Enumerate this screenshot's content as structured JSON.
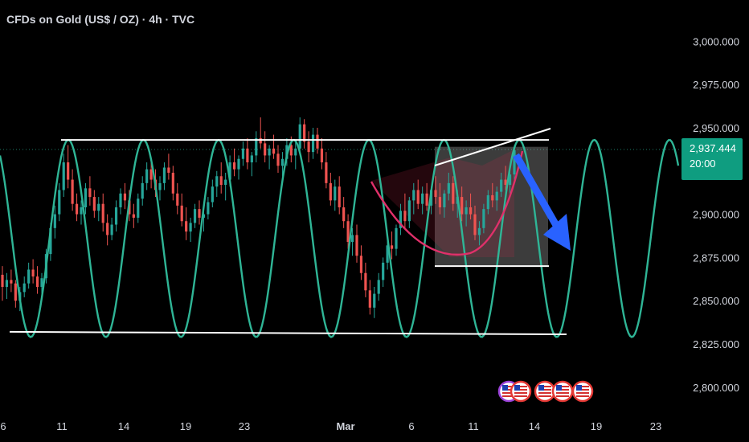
{
  "header": {
    "title": "CFDs on Gold (US$ / OZ) · 4h · TVC"
  },
  "price_tag": {
    "price": "2,937.444",
    "countdown": "20:00",
    "color": "#0f9d80"
  },
  "chart_data": {
    "type": "candlestick",
    "title": "CFDs on Gold (US$ / OZ) · 4h · TVC",
    "y_axis": {
      "ticks": [
        3000,
        2975,
        2950,
        2925,
        2900,
        2875,
        2850,
        2825,
        2800
      ],
      "tick_labels": [
        "3,000.000",
        "2,975.000",
        "2,950.000",
        "",
        "2,900.000",
        "2,875.000",
        "2,850.000",
        "2,825.000",
        "2,800.000"
      ],
      "range": [
        2790,
        3018
      ]
    },
    "x_axis": {
      "tick_labels": [
        "6",
        "11",
        "14",
        "19",
        "23",
        "Mar",
        "6",
        "11",
        "14",
        "19",
        "23"
      ]
    },
    "last_price": 2937.444,
    "colors": {
      "up": "#26a69a",
      "down": "#ef5350",
      "wave": "#2fb596",
      "arrow": "#2962ff",
      "lines": "#ffffff"
    },
    "candles": [
      [
        2865,
        2870,
        2850,
        2858
      ],
      [
        2858,
        2866,
        2851,
        2862
      ],
      [
        2862,
        2868,
        2855,
        2860
      ],
      [
        2860,
        2862,
        2846,
        2850
      ],
      [
        2850,
        2858,
        2844,
        2855
      ],
      [
        2855,
        2864,
        2852,
        2860
      ],
      [
        2860,
        2872,
        2857,
        2868
      ],
      [
        2868,
        2874,
        2860,
        2864
      ],
      [
        2864,
        2870,
        2854,
        2858
      ],
      [
        2858,
        2866,
        2853,
        2863
      ],
      [
        2863,
        2880,
        2860,
        2877
      ],
      [
        2877,
        2895,
        2873,
        2892
      ],
      [
        2892,
        2905,
        2886,
        2900
      ],
      [
        2900,
        2918,
        2896,
        2914
      ],
      [
        2914,
        2935,
        2910,
        2930
      ],
      [
        2930,
        2940,
        2915,
        2920
      ],
      [
        2920,
        2926,
        2902,
        2906
      ],
      [
        2906,
        2912,
        2896,
        2900
      ],
      [
        2900,
        2908,
        2894,
        2904
      ],
      [
        2904,
        2918,
        2900,
        2915
      ],
      [
        2915,
        2922,
        2905,
        2910
      ],
      [
        2910,
        2914,
        2898,
        2902
      ],
      [
        2902,
        2910,
        2896,
        2906
      ],
      [
        2906,
        2912,
        2890,
        2895
      ],
      [
        2895,
        2900,
        2882,
        2888
      ],
      [
        2888,
        2898,
        2885,
        2894
      ],
      [
        2894,
        2908,
        2890,
        2904
      ],
      [
        2904,
        2915,
        2900,
        2912
      ],
      [
        2912,
        2918,
        2903,
        2908
      ],
      [
        2908,
        2914,
        2896,
        2900
      ],
      [
        2900,
        2906,
        2892,
        2898
      ],
      [
        2898,
        2912,
        2895,
        2909
      ],
      [
        2909,
        2922,
        2905,
        2918
      ],
      [
        2918,
        2930,
        2914,
        2926
      ],
      [
        2926,
        2932,
        2915,
        2920
      ],
      [
        2920,
        2926,
        2910,
        2914
      ],
      [
        2914,
        2922,
        2908,
        2918
      ],
      [
        2918,
        2930,
        2914,
        2927
      ],
      [
        2927,
        2935,
        2920,
        2924
      ],
      [
        2924,
        2928,
        2908,
        2912
      ],
      [
        2912,
        2918,
        2900,
        2905
      ],
      [
        2905,
        2912,
        2893,
        2896
      ],
      [
        2896,
        2904,
        2885,
        2890
      ],
      [
        2890,
        2898,
        2884,
        2895
      ],
      [
        2895,
        2906,
        2892,
        2903
      ],
      [
        2903,
        2908,
        2894,
        2898
      ],
      [
        2898,
        2903,
        2890,
        2900
      ],
      [
        2900,
        2910,
        2897,
        2907
      ],
      [
        2907,
        2920,
        2904,
        2916
      ],
      [
        2916,
        2925,
        2910,
        2922
      ],
      [
        2922,
        2930,
        2912,
        2917
      ],
      [
        2917,
        2924,
        2908,
        2920
      ],
      [
        2920,
        2934,
        2916,
        2930
      ],
      [
        2930,
        2938,
        2922,
        2926
      ],
      [
        2926,
        2934,
        2920,
        2932
      ],
      [
        2932,
        2942,
        2928,
        2938
      ],
      [
        2938,
        2944,
        2926,
        2930
      ],
      [
        2930,
        2936,
        2922,
        2934
      ],
      [
        2934,
        2948,
        2930,
        2944
      ],
      [
        2944,
        2956,
        2938,
        2941
      ],
      [
        2941,
        2948,
        2930,
        2934
      ],
      [
        2934,
        2940,
        2926,
        2938
      ],
      [
        2938,
        2946,
        2932,
        2935
      ],
      [
        2935,
        2940,
        2924,
        2928
      ],
      [
        2928,
        2936,
        2922,
        2932
      ],
      [
        2932,
        2944,
        2928,
        2940
      ],
      [
        2940,
        2945,
        2930,
        2934
      ],
      [
        2934,
        2942,
        2926,
        2938
      ],
      [
        2938,
        2956,
        2934,
        2952
      ],
      [
        2952,
        2955,
        2938,
        2942
      ],
      [
        2942,
        2948,
        2930,
        2936
      ],
      [
        2936,
        2950,
        2932,
        2946
      ],
      [
        2946,
        2950,
        2935,
        2938
      ],
      [
        2938,
        2944,
        2926,
        2930
      ],
      [
        2930,
        2936,
        2915,
        2918
      ],
      [
        2918,
        2924,
        2905,
        2908
      ],
      [
        2908,
        2920,
        2902,
        2916
      ],
      [
        2916,
        2922,
        2900,
        2904
      ],
      [
        2904,
        2910,
        2892,
        2896
      ],
      [
        2896,
        2900,
        2880,
        2884
      ],
      [
        2884,
        2892,
        2876,
        2888
      ],
      [
        2888,
        2894,
        2872,
        2876
      ],
      [
        2876,
        2882,
        2862,
        2866
      ],
      [
        2866,
        2872,
        2852,
        2856
      ],
      [
        2856,
        2862,
        2842,
        2846
      ],
      [
        2846,
        2858,
        2840,
        2854
      ],
      [
        2854,
        2866,
        2850,
        2862
      ],
      [
        2862,
        2875,
        2858,
        2872
      ],
      [
        2872,
        2886,
        2868,
        2882
      ],
      [
        2882,
        2890,
        2874,
        2880
      ],
      [
        2880,
        2894,
        2876,
        2892
      ],
      [
        2892,
        2906,
        2888,
        2902
      ],
      [
        2902,
        2912,
        2892,
        2896
      ],
      [
        2896,
        2910,
        2892,
        2908
      ],
      [
        2908,
        2918,
        2900,
        2914
      ],
      [
        2914,
        2920,
        2903,
        2906
      ],
      [
        2906,
        2916,
        2900,
        2912
      ],
      [
        2912,
        2918,
        2902,
        2905
      ],
      [
        2905,
        2916,
        2900,
        2914
      ],
      [
        2914,
        2922,
        2906,
        2910
      ],
      [
        2910,
        2918,
        2900,
        2904
      ],
      [
        2904,
        2914,
        2898,
        2912
      ],
      [
        2912,
        2924,
        2908,
        2918
      ],
      [
        2918,
        2922,
        2902,
        2906
      ],
      [
        2906,
        2914,
        2898,
        2910
      ],
      [
        2910,
        2916,
        2896,
        2900
      ],
      [
        2900,
        2908,
        2893,
        2904
      ],
      [
        2904,
        2912,
        2897,
        2900
      ],
      [
        2900,
        2905,
        2885,
        2888
      ],
      [
        2888,
        2896,
        2882,
        2892
      ],
      [
        2892,
        2906,
        2889,
        2903
      ],
      [
        2903,
        2914,
        2900,
        2911
      ],
      [
        2911,
        2918,
        2904,
        2908
      ],
      [
        2908,
        2916,
        2902,
        2913
      ],
      [
        2913,
        2924,
        2910,
        2920
      ],
      [
        2920,
        2928,
        2914,
        2917
      ],
      [
        2917,
        2926,
        2912,
        2923
      ],
      [
        2923,
        2940,
        2920,
        2937
      ]
    ],
    "annotations": {
      "channel_top": 2943,
      "channel_bottom": 2832,
      "box": {
        "top": 2939,
        "bottom": 2870
      },
      "wave": {
        "center": 2886,
        "amplitude": 57
      }
    }
  }
}
